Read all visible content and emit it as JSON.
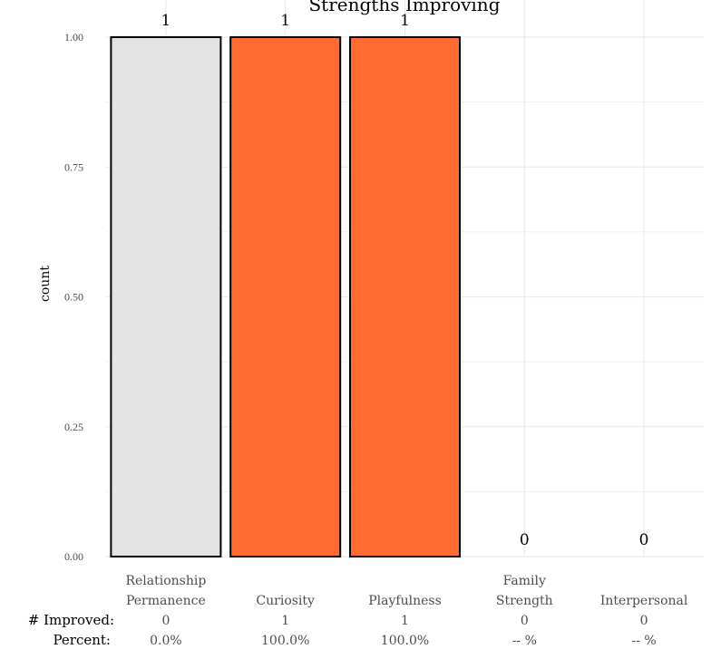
{
  "chart_data": {
    "type": "bar",
    "title": "Strengths Improving",
    "ylabel": "count",
    "xlabel": "",
    "ylim": [
      0,
      1
    ],
    "yticks": [
      "0.00",
      "0.25",
      "0.50",
      "0.75",
      "1.00"
    ],
    "grid": true,
    "categories": [
      [
        "Relationship",
        "Permanence"
      ],
      [
        "Curiosity"
      ],
      [
        "Playfulness"
      ],
      [
        "Family",
        "Strength"
      ],
      [
        "Interpersonal"
      ]
    ],
    "values": [
      1,
      1,
      1,
      0,
      0
    ],
    "bar_labels": [
      "1",
      "1",
      "1",
      "0",
      "0"
    ],
    "bar_colors": [
      "#e3e3e3",
      "#ff6b30",
      "#ff6b30",
      "#e3e3e3",
      "#e3e3e3"
    ],
    "summary": {
      "improved_label": "# Improved:",
      "improved": [
        "0",
        "1",
        "1",
        "0",
        "0"
      ],
      "percent_label": "Percent:",
      "percent": [
        "0.0%",
        "100.0%",
        "100.0%",
        "-- %",
        "-- %"
      ]
    }
  },
  "colors": {
    "accent": "#ff6b30",
    "neutral": "#e3e3e3",
    "grid": "#ebebeb"
  }
}
